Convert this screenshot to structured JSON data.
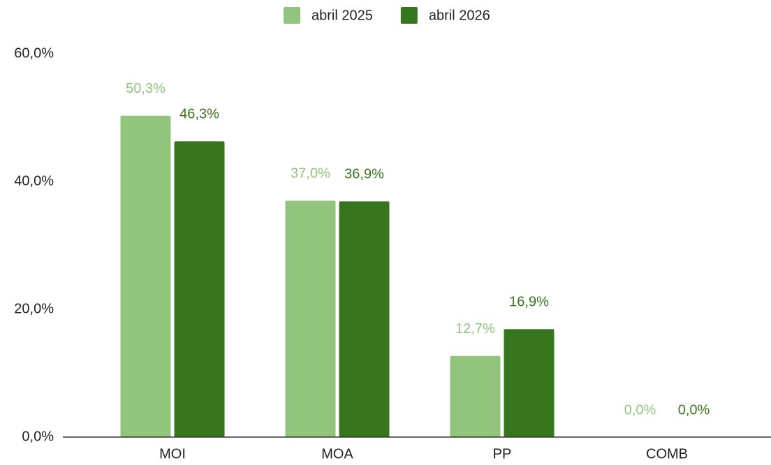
{
  "chart_data": {
    "type": "bar",
    "categories": [
      "MOI",
      "MOA",
      "PP",
      "COMB"
    ],
    "series": [
      {
        "name": "abril 2025",
        "color": "#93c47d",
        "values": [
          50.3,
          37.0,
          12.7,
          0.0
        ],
        "value_labels": [
          "50,3%",
          "37,0%",
          "12,7%",
          "0,0%"
        ]
      },
      {
        "name": "abril 2026",
        "color": "#38761d",
        "values": [
          46.3,
          36.9,
          16.9,
          0.0
        ],
        "value_labels": [
          "46,3%",
          "36,9%",
          "16,9%",
          "0,0%"
        ]
      }
    ],
    "ylim": [
      0,
      60
    ],
    "yticks": [
      {
        "value": 0,
        "label": "0,0%"
      },
      {
        "value": 20,
        "label": "20,0%"
      },
      {
        "value": 40,
        "label": "40,0%"
      },
      {
        "value": 60,
        "label": "60,0%"
      }
    ],
    "grid": false,
    "legend": "top"
  }
}
